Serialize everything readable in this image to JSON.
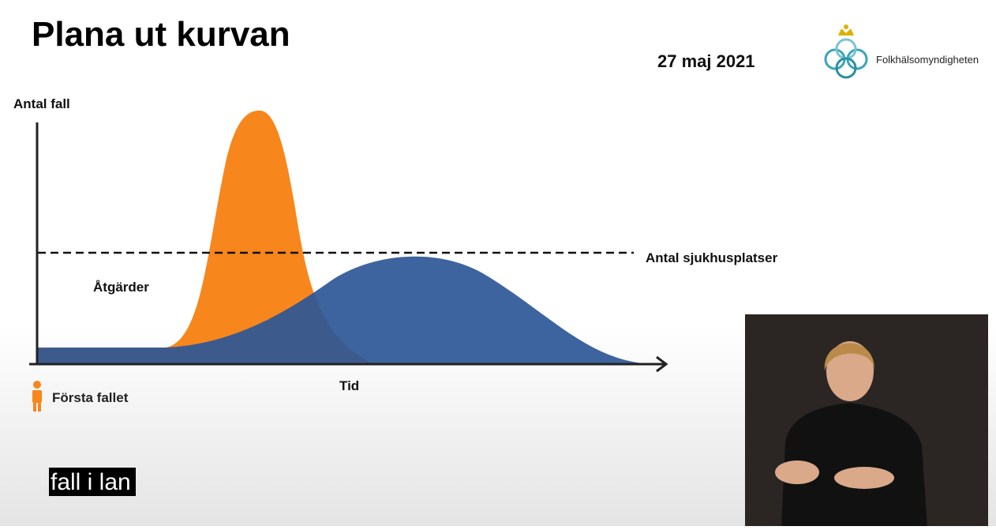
{
  "slide": {
    "title": "Plana ut kurvan",
    "date": "27 maj 2021",
    "logo_text": "Folkhälsomyndigheten",
    "y_axis_label": "Antal fall",
    "x_axis_label": "Tid",
    "capacity_label": "Antal sjukhusplatser",
    "measures_label": "Åtgärder",
    "first_case_label": "Första fallet"
  },
  "caption": "fall i lan"
}
